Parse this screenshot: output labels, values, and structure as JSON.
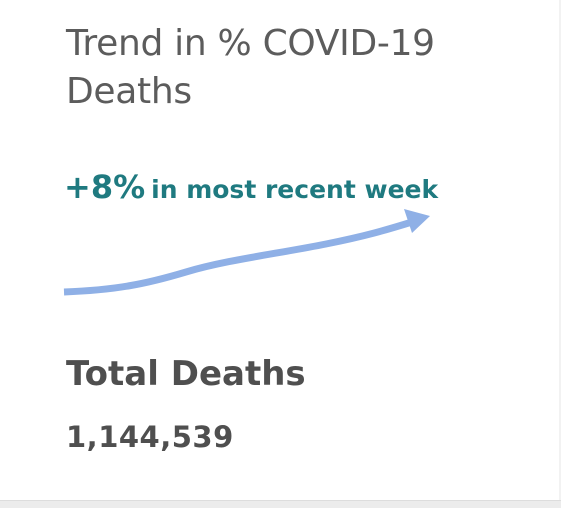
{
  "card": {
    "title": "Trend in % COVID-19 Deaths",
    "trend": {
      "value": "+8%",
      "caption": "in most recent week",
      "direction": "up",
      "line_color": "#8fb0e6",
      "text_color": "#1f7a80"
    },
    "total": {
      "label": "Total Deaths",
      "value": "1,144,539"
    }
  }
}
